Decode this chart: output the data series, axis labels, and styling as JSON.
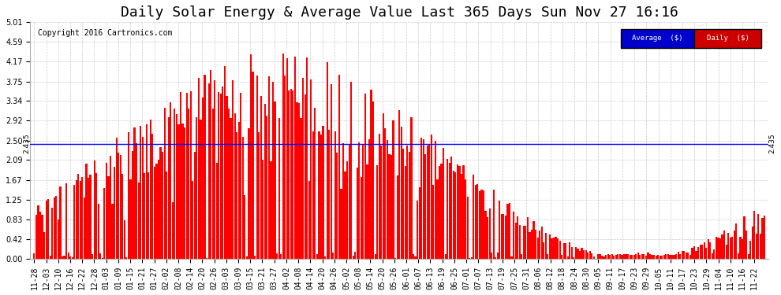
{
  "title": "Daily Solar Energy & Average Value Last 365 Days Sun Nov 27 16:16",
  "copyright": "Copyright 2016 Cartronics.com",
  "average_value": 2.435,
  "average_label": "2.435",
  "ylim": [
    0.0,
    5.01
  ],
  "yticks": [
    0.0,
    0.42,
    0.83,
    1.25,
    1.67,
    2.09,
    2.5,
    2.92,
    3.34,
    3.75,
    4.17,
    4.59,
    5.01
  ],
  "bar_color": "#ff0000",
  "avg_line_color": "#0000ff",
  "background_color": "#ffffff",
  "grid_color": "#cccccc",
  "legend_avg_bg": "#0000cc",
  "legend_daily_bg": "#cc0000",
  "legend_text_color": "#ffffff",
  "title_fontsize": 13,
  "copyright_fontsize": 7,
  "tick_fontsize": 7,
  "x_labels": [
    "11-28",
    "12-03",
    "12-10",
    "12-16",
    "12-22",
    "12-28",
    "01-03",
    "01-09",
    "01-15",
    "01-21",
    "01-27",
    "02-02",
    "02-08",
    "02-14",
    "02-20",
    "02-26",
    "03-03",
    "03-09",
    "03-15",
    "03-21",
    "03-27",
    "04-02",
    "04-08",
    "04-14",
    "04-20",
    "04-26",
    "05-02",
    "05-08",
    "05-14",
    "05-20",
    "05-26",
    "06-01",
    "06-07",
    "06-13",
    "06-19",
    "06-25",
    "07-01",
    "07-07",
    "07-13",
    "07-19",
    "07-25",
    "07-31",
    "08-06",
    "08-12",
    "08-18",
    "08-24",
    "08-30",
    "09-05",
    "09-11",
    "09-17",
    "09-23",
    "09-29",
    "10-05",
    "10-11",
    "10-17",
    "10-23",
    "10-29",
    "11-04",
    "11-10",
    "11-16",
    "11-22"
  ],
  "n_bars": 365,
  "seed": 42
}
